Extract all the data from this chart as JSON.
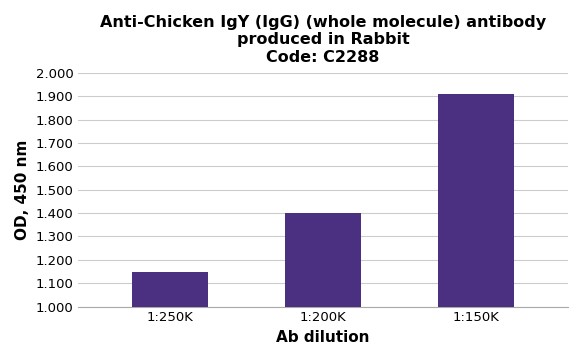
{
  "title_line1": "Anti-Chicken IgY (IgG) (whole molecule) antibody",
  "title_line2": "produced in Rabbit",
  "title_line3": "Code: C2288",
  "categories": [
    "1:250K",
    "1:200K",
    "1:150K"
  ],
  "values": [
    1.15,
    1.4,
    1.91
  ],
  "bar_color": "#4B3082",
  "xlabel": "Ab dilution",
  "ylabel": "OD, 450 nm",
  "ymin": 1.0,
  "ymax": 2.0,
  "yticks": [
    1.0,
    1.1,
    1.2,
    1.3,
    1.4,
    1.5,
    1.6,
    1.7,
    1.8,
    1.9,
    2.0
  ],
  "ytick_labels": [
    "1.000",
    "1.100",
    "1.200",
    "1.300",
    "1.400",
    "1.500",
    "1.600",
    "1.700",
    "1.800",
    "1.900",
    "2.000"
  ],
  "background_color": "#ffffff",
  "grid_color": "#cccccc",
  "title_fontsize": 11.5,
  "axis_label_fontsize": 11,
  "tick_fontsize": 9.5,
  "bar_width": 0.5
}
